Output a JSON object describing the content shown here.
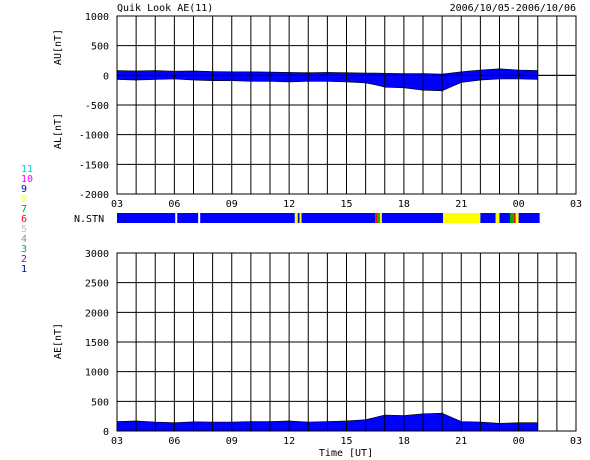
{
  "header": {
    "title": "Quik Look AE(11)",
    "date_range": "2006/10/05-2006/10/06"
  },
  "station_legend": [
    {
      "label": "11",
      "color": "#00d0d0"
    },
    {
      "label": "10",
      "color": "#ff00ff"
    },
    {
      "label": "9",
      "color": "#0000d0"
    },
    {
      "label": "8",
      "color": "#ffff00"
    },
    {
      "label": "7",
      "color": "#00b000"
    },
    {
      "label": "6",
      "color": "#ff0000"
    },
    {
      "label": "5",
      "color": "#c0c0c0"
    },
    {
      "label": "4",
      "color": "#909090"
    },
    {
      "label": "3",
      "color": "#00a0a0"
    },
    {
      "label": "2",
      "color": "#a000a0"
    },
    {
      "label": "1",
      "color": "#000090"
    }
  ],
  "colors": {
    "primary_station": "#0000ff",
    "secondary_station": "#ffff00",
    "accent_green": "#00b000",
    "accent_red": "#ff0000"
  },
  "chart_data": [
    {
      "type": "area",
      "panel": "AU/AL",
      "ylabel_upper": "AU[nT]",
      "ylabel_lower": "AL[nT]",
      "ylim": [
        -2000,
        1000
      ],
      "yticks": [
        1000,
        500,
        0,
        -500,
        -1000,
        -1500,
        -2000
      ],
      "xlim": [
        3,
        27
      ],
      "xticks": [
        "03",
        "06",
        "09",
        "12",
        "15",
        "18",
        "21",
        "00",
        "03"
      ],
      "grid": true,
      "x_hours": [
        3,
        4,
        5,
        6,
        7,
        8,
        9,
        10,
        11,
        12,
        13,
        14,
        15,
        16,
        16.5,
        17,
        18,
        19,
        20,
        21,
        22,
        23,
        24,
        25
      ],
      "au": [
        80,
        75,
        80,
        70,
        75,
        65,
        60,
        60,
        55,
        50,
        45,
        50,
        45,
        40,
        40,
        35,
        30,
        30,
        20,
        60,
        90,
        110,
        90,
        80
      ],
      "al": [
        -70,
        -80,
        -70,
        -60,
        -80,
        -90,
        -90,
        -100,
        -100,
        -110,
        -100,
        -100,
        -110,
        -130,
        -160,
        -200,
        -210,
        -250,
        -260,
        -120,
        -80,
        -60,
        -60,
        -70
      ]
    },
    {
      "type": "bar",
      "panel": "N.STN",
      "ylabel": "N.STN",
      "xlim": [
        3,
        27
      ],
      "segments": [
        {
          "start": 3.0,
          "end": 6.05,
          "color": "#0000ff"
        },
        {
          "start": 6.05,
          "end": 6.15,
          "color": "#ffffff"
        },
        {
          "start": 6.15,
          "end": 7.25,
          "color": "#0000ff"
        },
        {
          "start": 7.25,
          "end": 7.35,
          "color": "#ffffff"
        },
        {
          "start": 7.35,
          "end": 12.3,
          "color": "#0000ff"
        },
        {
          "start": 12.3,
          "end": 12.45,
          "color": "#ffff00"
        },
        {
          "start": 12.45,
          "end": 12.55,
          "color": "#0000ff"
        },
        {
          "start": 12.55,
          "end": 12.65,
          "color": "#ffff00"
        },
        {
          "start": 12.65,
          "end": 16.5,
          "color": "#0000ff"
        },
        {
          "start": 16.5,
          "end": 16.6,
          "color": "#ff0000"
        },
        {
          "start": 16.6,
          "end": 16.75,
          "color": "#00b000"
        },
        {
          "start": 16.75,
          "end": 16.85,
          "color": "#ffff00"
        },
        {
          "start": 16.85,
          "end": 20.05,
          "color": "#0000ff"
        },
        {
          "start": 20.05,
          "end": 22.0,
          "color": "#ffff00"
        },
        {
          "start": 22.0,
          "end": 22.8,
          "color": "#0000ff"
        },
        {
          "start": 22.8,
          "end": 23.0,
          "color": "#ffff00"
        },
        {
          "start": 23.0,
          "end": 23.55,
          "color": "#0000ff"
        },
        {
          "start": 23.55,
          "end": 23.75,
          "color": "#00b000"
        },
        {
          "start": 23.75,
          "end": 23.85,
          "color": "#ff0000"
        },
        {
          "start": 23.85,
          "end": 24.0,
          "color": "#ffff00"
        },
        {
          "start": 24.0,
          "end": 25.1,
          "color": "#0000ff"
        }
      ]
    },
    {
      "type": "area",
      "panel": "AE",
      "ylabel": "AE[nT]",
      "xlabel": "Time [UT]",
      "ylim": [
        0,
        3000
      ],
      "yticks": [
        3000,
        2500,
        2000,
        1500,
        1000,
        500,
        0
      ],
      "xlim": [
        3,
        27
      ],
      "xticks": [
        "03",
        "06",
        "09",
        "12",
        "15",
        "18",
        "21",
        "00",
        "03"
      ],
      "grid": true,
      "x_hours": [
        3,
        4,
        5,
        6,
        7,
        8,
        9,
        10,
        11,
        12,
        13,
        14,
        15,
        16,
        16.5,
        17,
        18,
        19,
        20,
        21,
        22,
        23,
        24,
        25
      ],
      "values": [
        160,
        170,
        150,
        140,
        155,
        150,
        150,
        160,
        160,
        170,
        150,
        160,
        170,
        190,
        230,
        270,
        260,
        290,
        300,
        160,
        150,
        130,
        140,
        140
      ]
    }
  ]
}
